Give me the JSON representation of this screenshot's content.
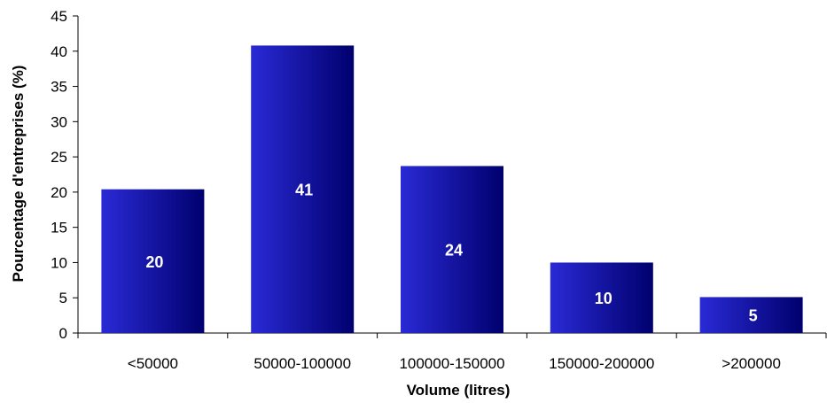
{
  "chart_data": {
    "type": "bar",
    "categories": [
      "<50000",
      "50000-100000",
      "100000-150000",
      "150000-200000",
      ">200000"
    ],
    "values": [
      20.4,
      40.8,
      23.7,
      10.0,
      5.1
    ],
    "data_labels": [
      "20",
      "41",
      "24",
      "10",
      "5"
    ],
    "title": "",
    "xlabel": "Volume (litres)",
    "ylabel": "Pourcentage d'entreprises (%)",
    "ylim": [
      0,
      45
    ],
    "yticks": [
      0,
      5,
      10,
      15,
      20,
      25,
      30,
      35,
      40,
      45
    ],
    "grid": false,
    "legend": "none",
    "bar_color_light": "#2a2ad6",
    "bar_color_dark": "#00006e"
  }
}
